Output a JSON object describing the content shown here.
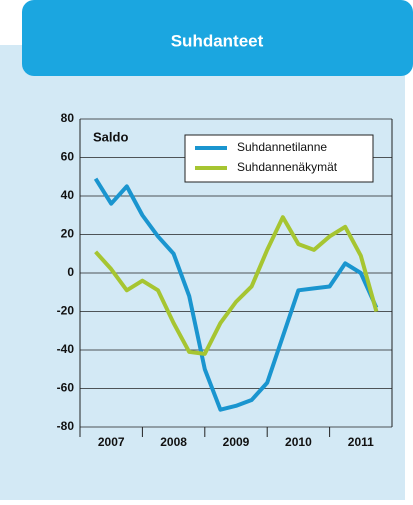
{
  "chart_data": {
    "type": "line",
    "title": "Suhdanteet",
    "y_label": "Saldo",
    "x": [
      2007.25,
      2007.5,
      2007.75,
      2008.0,
      2008.25,
      2008.5,
      2008.75,
      2009.0,
      2009.25,
      2009.5,
      2009.75,
      2010.0,
      2010.25,
      2010.5,
      2010.75,
      2011.0,
      2011.25,
      2011.5,
      2011.75
    ],
    "series": [
      {
        "name": "Suhdannetilanne",
        "color": "#1a95cf",
        "values": [
          49,
          36,
          45,
          30,
          19,
          10,
          -12,
          -50,
          -71,
          -69,
          -66,
          -57,
          -33,
          -9,
          -8,
          -7,
          5,
          0,
          -18
        ]
      },
      {
        "name": "Suhdannenäkymät",
        "color": "#a6c531",
        "values": [
          11,
          2,
          -9,
          -4,
          -9,
          -26,
          -41,
          -42,
          -26,
          -15,
          -7,
          12,
          29,
          15,
          12,
          19,
          24,
          9,
          -20
        ]
      }
    ],
    "xlim": [
      2007,
      2012
    ],
    "xticks": [
      2007,
      2008,
      2009,
      2010,
      2011
    ],
    "ylim": [
      -80,
      80
    ],
    "yticks": [
      -80,
      -60,
      -40,
      -20,
      0,
      20,
      40,
      60,
      80
    ],
    "grid": true,
    "legend": "upper right"
  }
}
